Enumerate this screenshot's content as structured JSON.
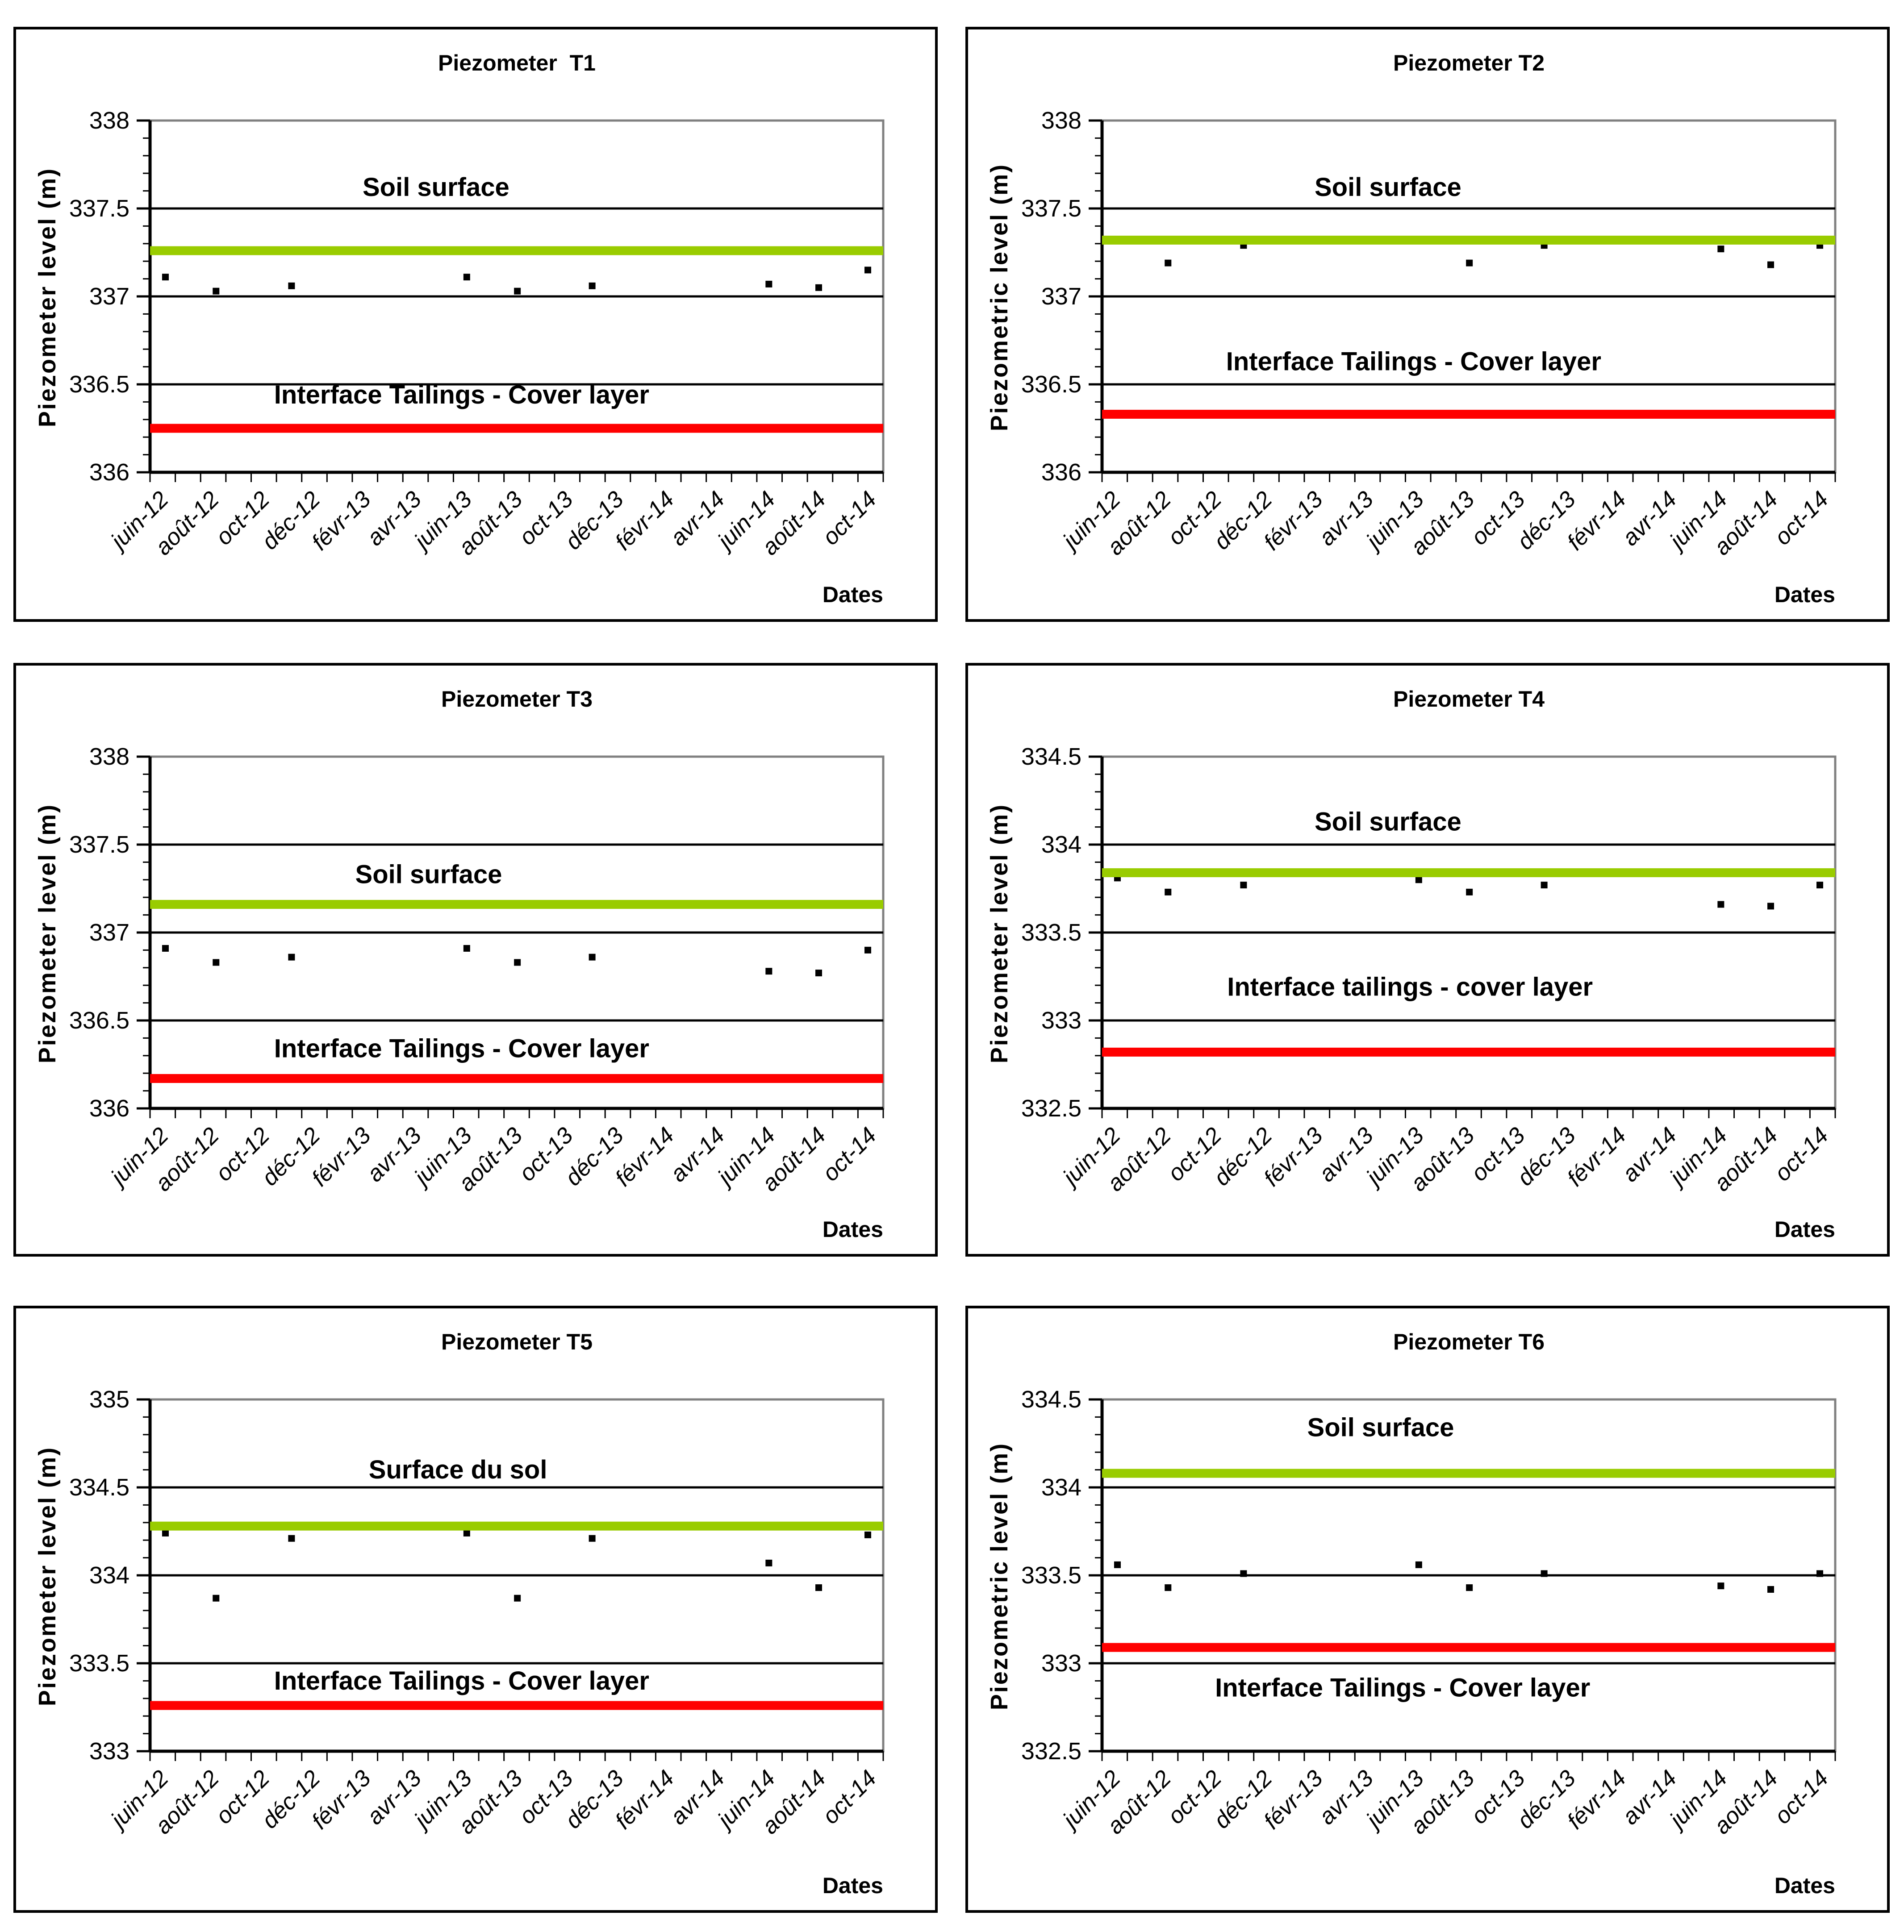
{
  "page": {
    "background": "#ffffff",
    "grid_layout": "2 columns x 3 rows"
  },
  "colors": {
    "soil_surface": "#99CC00",
    "interface": "#FF0000",
    "marker": "#000000",
    "plot_border": "#808080",
    "gridline": "#000000"
  },
  "chart_data": [
    {
      "id": "T1",
      "type": "scatter",
      "title": "Piezometer  T1",
      "ylabel": "Piezometer level (m)",
      "xlabel": "Dates",
      "ylim": [
        336,
        338
      ],
      "ytick_step": 0.5,
      "yminor_step": 0.1,
      "grid": "horizontal-major",
      "legend": "none",
      "y_tick_labels": [
        "336",
        "336.5",
        "337",
        "337.5",
        "338"
      ],
      "x_tick_labels": [
        "juin-12",
        "août-12",
        "oct-12",
        "déc-12",
        "févr-13",
        "avr-13",
        "juin-13",
        "août-13",
        "oct-13",
        "déc-13",
        "févr-14",
        "avr-14",
        "juin-14",
        "août-14",
        "oct-14"
      ],
      "series": [
        {
          "name": "piezometer-readings",
          "marker": "black-square",
          "points": [
            {
              "date": "juin-12",
              "x_frac": 0.021,
              "value": 337.11
            },
            {
              "date": "août-12",
              "x_frac": 0.09,
              "value": 337.03
            },
            {
              "date": "nov-12",
              "x_frac": 0.193,
              "value": 337.06
            },
            {
              "date": "juin-13",
              "x_frac": 0.432,
              "value": 337.11
            },
            {
              "date": "août-13",
              "x_frac": 0.501,
              "value": 337.03
            },
            {
              "date": "nov-13",
              "x_frac": 0.603,
              "value": 337.06
            },
            {
              "date": "juin-14",
              "x_frac": 0.844,
              "value": 337.07
            },
            {
              "date": "août-14",
              "x_frac": 0.912,
              "value": 337.05
            },
            {
              "date": "oct-14",
              "x_frac": 0.979,
              "value": 337.15
            }
          ]
        }
      ],
      "reference_lines": [
        {
          "name": "soil-surface",
          "label": "Soil surface",
          "value": 337.26,
          "color": "#99CC00",
          "label_color": "#99CC00",
          "label_x_frac": 0.39,
          "label_y": 337.62
        },
        {
          "name": "interface-tailings-cover-layer",
          "label": "Interface Tailings - Cover layer",
          "value": 336.25,
          "color": "#FF0000",
          "label_color": "#FF0000",
          "label_x_frac": 0.425,
          "label_y": 336.44
        }
      ]
    },
    {
      "id": "T2",
      "type": "scatter",
      "title": "Piezometer T2",
      "ylabel": "Piezometric level (m)",
      "xlabel": "Dates",
      "ylim": [
        336,
        338
      ],
      "ytick_step": 0.5,
      "yminor_step": 0.1,
      "grid": "horizontal-major",
      "legend": "none",
      "y_tick_labels": [
        "336",
        "336.5",
        "337",
        "337.5",
        "338"
      ],
      "x_tick_labels": [
        "juin-12",
        "août-12",
        "oct-12",
        "déc-12",
        "févr-13",
        "avr-13",
        "juin-13",
        "août-13",
        "oct-13",
        "déc-13",
        "févr-14",
        "avr-14",
        "juin-14",
        "août-14",
        "oct-14"
      ],
      "series": [
        {
          "name": "piezometer-readings",
          "marker": "black-square",
          "points": [
            {
              "date": "juin-12",
              "x_frac": 0.021,
              "value": 337.32
            },
            {
              "date": "août-12",
              "x_frac": 0.09,
              "value": 337.19
            },
            {
              "date": "nov-12",
              "x_frac": 0.193,
              "value": 337.29
            },
            {
              "date": "juin-13",
              "x_frac": 0.432,
              "value": 337.32
            },
            {
              "date": "août-13",
              "x_frac": 0.501,
              "value": 337.19
            },
            {
              "date": "nov-13",
              "x_frac": 0.603,
              "value": 337.29
            },
            {
              "date": "juin-14",
              "x_frac": 0.844,
              "value": 337.27
            },
            {
              "date": "août-14",
              "x_frac": 0.912,
              "value": 337.18
            },
            {
              "date": "oct-14",
              "x_frac": 0.979,
              "value": 337.29
            }
          ]
        }
      ],
      "reference_lines": [
        {
          "name": "soil-surface",
          "label": "Soil surface",
          "value": 337.32,
          "color": "#99CC00",
          "label_color": "#99CC00",
          "label_x_frac": 0.39,
          "label_y": 337.62
        },
        {
          "name": "interface-tailings-cover-layer",
          "label": "Interface Tailings - Cover layer",
          "value": 336.33,
          "color": "#FF0000",
          "label_color": "#FF0000",
          "label_x_frac": 0.425,
          "label_y": 336.63
        }
      ]
    },
    {
      "id": "T3",
      "type": "scatter",
      "title": "Piezometer T3",
      "ylabel": "Piezometer level (m)",
      "xlabel": "Dates",
      "ylim": [
        336,
        338
      ],
      "ytick_step": 0.5,
      "yminor_step": 0.1,
      "grid": "horizontal-major",
      "legend": "none",
      "y_tick_labels": [
        "336",
        "336.5",
        "337",
        "337.5",
        "338"
      ],
      "x_tick_labels": [
        "juin-12",
        "août-12",
        "oct-12",
        "déc-12",
        "févr-13",
        "avr-13",
        "juin-13",
        "août-13",
        "oct-13",
        "déc-13",
        "févr-14",
        "avr-14",
        "juin-14",
        "août-14",
        "oct-14"
      ],
      "series": [
        {
          "name": "piezometer-readings",
          "marker": "black-square",
          "points": [
            {
              "date": "juin-12",
              "x_frac": 0.021,
              "value": 336.91
            },
            {
              "date": "août-12",
              "x_frac": 0.09,
              "value": 336.83
            },
            {
              "date": "nov-12",
              "x_frac": 0.193,
              "value": 336.86
            },
            {
              "date": "juin-13",
              "x_frac": 0.432,
              "value": 336.91
            },
            {
              "date": "août-13",
              "x_frac": 0.501,
              "value": 336.83
            },
            {
              "date": "nov-13",
              "x_frac": 0.603,
              "value": 336.86
            },
            {
              "date": "juin-14",
              "x_frac": 0.844,
              "value": 336.78
            },
            {
              "date": "août-14",
              "x_frac": 0.912,
              "value": 336.77
            },
            {
              "date": "oct-14",
              "x_frac": 0.979,
              "value": 336.9
            }
          ]
        }
      ],
      "reference_lines": [
        {
          "name": "soil-surface",
          "label": "Soil surface",
          "value": 337.16,
          "color": "#99CC00",
          "label_color": "#99CC00",
          "label_x_frac": 0.38,
          "label_y": 337.33
        },
        {
          "name": "interface-tailings-cover-layer",
          "label": "Interface Tailings - Cover layer",
          "value": 336.17,
          "color": "#FF0000",
          "label_color": "#FF0000",
          "label_x_frac": 0.425,
          "label_y": 336.34
        }
      ]
    },
    {
      "id": "T4",
      "type": "scatter",
      "title": "Piezometer T4",
      "ylabel": "Piezometer level (m)",
      "xlabel": "Dates",
      "ylim": [
        332.5,
        334.5
      ],
      "ytick_step": 0.5,
      "yminor_step": 0.1,
      "grid": "horizontal-major",
      "legend": "none",
      "y_tick_labels": [
        "332.5",
        "333",
        "333.5",
        "334",
        "334.5"
      ],
      "x_tick_labels": [
        "juin-12",
        "août-12",
        "oct-12",
        "déc-12",
        "févr-13",
        "avr-13",
        "juin-13",
        "août-13",
        "oct-13",
        "déc-13",
        "févr-14",
        "avr-14",
        "juin-14",
        "août-14",
        "oct-14"
      ],
      "series": [
        {
          "name": "piezometer-readings",
          "marker": "black-square",
          "points": [
            {
              "date": "juin-12",
              "x_frac": 0.021,
              "value": 333.81
            },
            {
              "date": "août-12",
              "x_frac": 0.09,
              "value": 333.73
            },
            {
              "date": "nov-12",
              "x_frac": 0.193,
              "value": 333.77
            },
            {
              "date": "juin-13",
              "x_frac": 0.432,
              "value": 333.8
            },
            {
              "date": "août-13",
              "x_frac": 0.501,
              "value": 333.73
            },
            {
              "date": "nov-13",
              "x_frac": 0.603,
              "value": 333.77
            },
            {
              "date": "juin-14",
              "x_frac": 0.844,
              "value": 333.66
            },
            {
              "date": "août-14",
              "x_frac": 0.912,
              "value": 333.65
            },
            {
              "date": "oct-14",
              "x_frac": 0.979,
              "value": 333.77
            }
          ]
        }
      ],
      "reference_lines": [
        {
          "name": "soil-surface",
          "label": "Soil surface",
          "value": 333.84,
          "color": "#99CC00",
          "label_color": "#99CC00",
          "label_x_frac": 0.39,
          "label_y": 334.13
        },
        {
          "name": "interface-tailings-cover-layer",
          "label": "Interface tailings - cover layer",
          "value": 332.82,
          "color": "#FF0000",
          "label_color": "#FF0000",
          "label_x_frac": 0.42,
          "label_y": 333.19
        }
      ]
    },
    {
      "id": "T5",
      "type": "scatter",
      "title": "Piezometer T5",
      "ylabel": "Piezometer level (m)",
      "xlabel": "Dates",
      "ylim": [
        333,
        335
      ],
      "ytick_step": 0.5,
      "yminor_step": 0.1,
      "grid": "horizontal-major",
      "legend": "none",
      "y_tick_labels": [
        "333",
        "333.5",
        "334",
        "334.5",
        "335"
      ],
      "x_tick_labels": [
        "juin-12",
        "août-12",
        "oct-12",
        "déc-12",
        "févr-13",
        "avr-13",
        "juin-13",
        "août-13",
        "oct-13",
        "déc-13",
        "févr-14",
        "avr-14",
        "juin-14",
        "août-14",
        "oct-14"
      ],
      "series": [
        {
          "name": "piezometer-readings",
          "marker": "black-square",
          "points": [
            {
              "date": "juin-12",
              "x_frac": 0.021,
              "value": 334.24
            },
            {
              "date": "août-12",
              "x_frac": 0.09,
              "value": 333.87
            },
            {
              "date": "nov-12",
              "x_frac": 0.193,
              "value": 334.21
            },
            {
              "date": "juin-13",
              "x_frac": 0.432,
              "value": 334.24
            },
            {
              "date": "août-13",
              "x_frac": 0.501,
              "value": 333.87
            },
            {
              "date": "nov-13",
              "x_frac": 0.603,
              "value": 334.21
            },
            {
              "date": "juin-14",
              "x_frac": 0.844,
              "value": 334.07
            },
            {
              "date": "août-14",
              "x_frac": 0.912,
              "value": 333.93
            },
            {
              "date": "oct-14",
              "x_frac": 0.979,
              "value": 334.23
            }
          ]
        }
      ],
      "reference_lines": [
        {
          "name": "soil-surface",
          "label": "Surface du sol",
          "value": 334.28,
          "color": "#99CC00",
          "label_color": "#99CC00",
          "label_x_frac": 0.42,
          "label_y": 334.6
        },
        {
          "name": "interface-tailings-cover-layer",
          "label": "Interface Tailings - Cover layer",
          "value": 333.26,
          "color": "#FF0000",
          "label_color": "#FF0000",
          "label_x_frac": 0.425,
          "label_y": 333.4
        }
      ]
    },
    {
      "id": "T6",
      "type": "scatter",
      "title": "Piezometer T6",
      "ylabel": "Piezometric level (m)",
      "xlabel": "Dates",
      "ylim": [
        332.5,
        334.5
      ],
      "ytick_step": 0.5,
      "yminor_step": 0.1,
      "grid": "horizontal-major",
      "legend": "none",
      "y_tick_labels": [
        "332.5",
        "333",
        "333.5",
        "334",
        "334.5"
      ],
      "x_tick_labels": [
        "juin-12",
        "août-12",
        "oct-12",
        "déc-12",
        "févr-13",
        "avr-13",
        "juin-13",
        "août-13",
        "oct-13",
        "déc-13",
        "févr-14",
        "avr-14",
        "juin-14",
        "août-14",
        "oct-14"
      ],
      "series": [
        {
          "name": "piezometer-readings",
          "marker": "black-square",
          "points": [
            {
              "date": "juin-12",
              "x_frac": 0.021,
              "value": 333.56
            },
            {
              "date": "août-12",
              "x_frac": 0.09,
              "value": 333.43
            },
            {
              "date": "nov-12",
              "x_frac": 0.193,
              "value": 333.51
            },
            {
              "date": "juin-13",
              "x_frac": 0.432,
              "value": 333.56
            },
            {
              "date": "août-13",
              "x_frac": 0.501,
              "value": 333.43
            },
            {
              "date": "nov-13",
              "x_frac": 0.603,
              "value": 333.51
            },
            {
              "date": "juin-14",
              "x_frac": 0.844,
              "value": 333.44
            },
            {
              "date": "août-14",
              "x_frac": 0.912,
              "value": 333.42
            },
            {
              "date": "oct-14",
              "x_frac": 0.979,
              "value": 333.51
            }
          ]
        }
      ],
      "reference_lines": [
        {
          "name": "soil-surface",
          "label": "Soil surface",
          "value": 334.08,
          "color": "#99CC00",
          "label_color": "#99CC00",
          "label_x_frac": 0.38,
          "label_y": 334.34
        },
        {
          "name": "interface-tailings-cover-layer",
          "label": "Interface Tailings - Cover layer",
          "value": 333.09,
          "color": "#FF0000",
          "label_color": "#FF0000",
          "label_x_frac": 0.41,
          "label_y": 332.86
        }
      ]
    }
  ]
}
